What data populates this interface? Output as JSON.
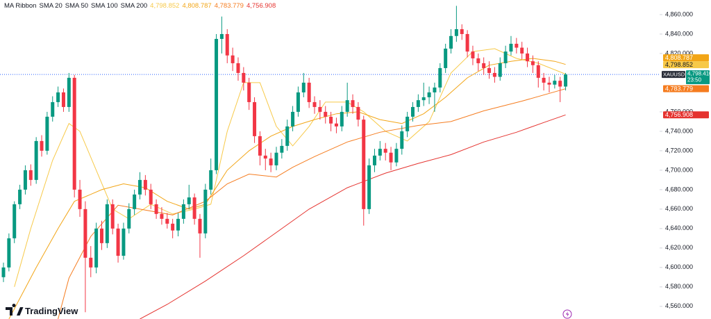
{
  "chart_data": {
    "type": "candlestick",
    "title": "MA Ribbon",
    "symbol": "XAUUSD",
    "time_label": "23:50",
    "brand": "TradingView",
    "last_price": {
      "value": 4798.41,
      "label": "4,798.410"
    },
    "up_color": "#089981",
    "down_color": "#f23645",
    "last_color": "#2962ff",
    "ylim": [
      4547,
      4875
    ],
    "yticks": [
      {
        "value": 4560,
        "label": "4,560.000"
      },
      {
        "value": 4580,
        "label": "4,580.000"
      },
      {
        "value": 4600,
        "label": "4,600.000"
      },
      {
        "value": 4620,
        "label": "4,620.000"
      },
      {
        "value": 4640,
        "label": "4,640.000"
      },
      {
        "value": 4660,
        "label": "4,660.000"
      },
      {
        "value": 4680,
        "label": "4,680.000"
      },
      {
        "value": 4700,
        "label": "4,700.000"
      },
      {
        "value": 4720,
        "label": "4,720.000"
      },
      {
        "value": 4740,
        "label": "4,740.000"
      },
      {
        "value": 4760,
        "label": "4,760.000"
      },
      {
        "value": 4820,
        "label": "4,820.000"
      },
      {
        "value": 4840,
        "label": "4,840.000"
      },
      {
        "value": 4860,
        "label": "4,860.000"
      }
    ],
    "candles": [
      [
        4590,
        4605,
        4585,
        4600
      ],
      [
        4600,
        4635,
        4596,
        4630
      ],
      [
        4630,
        4668,
        4625,
        4665
      ],
      [
        4665,
        4685,
        4660,
        4680
      ],
      [
        4680,
        4705,
        4675,
        4700
      ],
      [
        4700,
        4706,
        4684,
        4690
      ],
      [
        4690,
        4734,
        4686,
        4730
      ],
      [
        4730,
        4736,
        4714,
        4720
      ],
      [
        4720,
        4760,
        4716,
        4755
      ],
      [
        4755,
        4776,
        4750,
        4770
      ],
      [
        4770,
        4786,
        4765,
        4780
      ],
      [
        4780,
        4784,
        4760,
        4765
      ],
      [
        4765,
        4800,
        4760,
        4795
      ],
      [
        4795,
        4798,
        4672,
        4680
      ],
      [
        4680,
        4690,
        4652,
        4660
      ],
      [
        4660,
        4668,
        4554,
        4610
      ],
      [
        4610,
        4622,
        4590,
        4600
      ],
      [
        4600,
        4646,
        4594,
        4640
      ],
      [
        4640,
        4648,
        4618,
        4625
      ],
      [
        4625,
        4670,
        4620,
        4665
      ],
      [
        4665,
        4670,
        4634,
        4640
      ],
      [
        4640,
        4645,
        4605,
        4612
      ],
      [
        4612,
        4646,
        4608,
        4640
      ],
      [
        4640,
        4666,
        4635,
        4660
      ],
      [
        4660,
        4680,
        4654,
        4675
      ],
      [
        4675,
        4698,
        4670,
        4690
      ],
      [
        4690,
        4695,
        4674,
        4680
      ],
      [
        4680,
        4686,
        4660,
        4665
      ],
      [
        4665,
        4670,
        4650,
        4655
      ],
      [
        4655,
        4662,
        4644,
        4650
      ],
      [
        4650,
        4656,
        4640,
        4645
      ],
      [
        4645,
        4650,
        4630,
        4638
      ],
      [
        4638,
        4656,
        4632,
        4650
      ],
      [
        4650,
        4670,
        4645,
        4665
      ],
      [
        4665,
        4685,
        4660,
        4672
      ],
      [
        4672,
        4676,
        4644,
        4650
      ],
      [
        4650,
        4655,
        4610,
        4635
      ],
      [
        4635,
        4686,
        4630,
        4680
      ],
      [
        4680,
        4712,
        4675,
        4700
      ],
      [
        4700,
        4840,
        4696,
        4835
      ],
      [
        4835,
        4858,
        4820,
        4840
      ],
      [
        4840,
        4845,
        4810,
        4818
      ],
      [
        4818,
        4826,
        4802,
        4810
      ],
      [
        4810,
        4816,
        4792,
        4800
      ],
      [
        4800,
        4806,
        4782,
        4790
      ],
      [
        4790,
        4795,
        4762,
        4770
      ],
      [
        4770,
        4775,
        4728,
        4735
      ],
      [
        4735,
        4740,
        4705,
        4715
      ],
      [
        4715,
        4722,
        4700,
        4712
      ],
      [
        4712,
        4718,
        4698,
        4705
      ],
      [
        4705,
        4724,
        4700,
        4718
      ],
      [
        4718,
        4732,
        4712,
        4725
      ],
      [
        4725,
        4752,
        4720,
        4745
      ],
      [
        4745,
        4766,
        4740,
        4760
      ],
      [
        4760,
        4786,
        4755,
        4780
      ],
      [
        4780,
        4800,
        4775,
        4790
      ],
      [
        4790,
        4795,
        4764,
        4770
      ],
      [
        4770,
        4776,
        4758,
        4765
      ],
      [
        4765,
        4772,
        4752,
        4760
      ],
      [
        4760,
        4766,
        4748,
        4755
      ],
      [
        4755,
        4760,
        4740,
        4748
      ],
      [
        4748,
        4754,
        4738,
        4745
      ],
      [
        4745,
        4766,
        4740,
        4760
      ],
      [
        4760,
        4790,
        4755,
        4772
      ],
      [
        4772,
        4778,
        4758,
        4765
      ],
      [
        4765,
        4770,
        4745,
        4752
      ],
      [
        4752,
        4756,
        4643,
        4660
      ],
      [
        4660,
        4712,
        4655,
        4705
      ],
      [
        4705,
        4722,
        4698,
        4715
      ],
      [
        4715,
        4730,
        4710,
        4722
      ],
      [
        4722,
        4728,
        4710,
        4718
      ],
      [
        4718,
        4724,
        4700,
        4708
      ],
      [
        4708,
        4728,
        4704,
        4722
      ],
      [
        4722,
        4746,
        4716,
        4740
      ],
      [
        4740,
        4760,
        4734,
        4755
      ],
      [
        4755,
        4770,
        4750,
        4765
      ],
      [
        4765,
        4778,
        4760,
        4772
      ],
      [
        4772,
        4790,
        4766,
        4775
      ],
      [
        4775,
        4786,
        4768,
        4780
      ],
      [
        4780,
        4790,
        4760,
        4785
      ],
      [
        4785,
        4810,
        4780,
        4805
      ],
      [
        4805,
        4830,
        4800,
        4825
      ],
      [
        4825,
        4845,
        4820,
        4838
      ],
      [
        4838,
        4869,
        4832,
        4845
      ],
      [
        4845,
        4850,
        4834,
        4840
      ],
      [
        4840,
        4844,
        4816,
        4822
      ],
      [
        4822,
        4828,
        4808,
        4815
      ],
      [
        4815,
        4820,
        4802,
        4810
      ],
      [
        4810,
        4816,
        4798,
        4805
      ],
      [
        4805,
        4812,
        4794,
        4800
      ],
      [
        4800,
        4806,
        4790,
        4796
      ],
      [
        4796,
        4816,
        4792,
        4810
      ],
      [
        4810,
        4828,
        4805,
        4822
      ],
      [
        4822,
        4838,
        4818,
        4830
      ],
      [
        4830,
        4836,
        4820,
        4826
      ],
      [
        4826,
        4832,
        4814,
        4820
      ],
      [
        4820,
        4826,
        4806,
        4812
      ],
      [
        4812,
        4818,
        4800,
        4808
      ],
      [
        4808,
        4812,
        4785,
        4795
      ],
      [
        4795,
        4800,
        4782,
        4790
      ],
      [
        4790,
        4796,
        4780,
        4788
      ],
      [
        4788,
        4798,
        4784,
        4792
      ],
      [
        4792,
        4796,
        4770,
        4786
      ],
      [
        4786,
        4800,
        4782,
        4798.41
      ]
    ],
    "series": [
      {
        "name": "SMA 20",
        "color": "#f7c948",
        "last": {
          "value": 4798.852,
          "label": "4,798.852"
        },
        "x": [
          2,
          5,
          9,
          12,
          14,
          17,
          20,
          23,
          27,
          31,
          35,
          38,
          41,
          44,
          47,
          50,
          53,
          56,
          59,
          63,
          66,
          70,
          74,
          78,
          82,
          86,
          90,
          94,
          98,
          103
        ],
        "values": [
          4580,
          4640,
          4710,
          4748,
          4740,
          4700,
          4660,
          4650,
          4665,
          4655,
          4660,
          4665,
          4740,
          4790,
          4790,
          4745,
          4725,
          4745,
          4770,
          4770,
          4760,
          4740,
          4730,
          4750,
          4800,
          4822,
          4825,
          4815,
          4810,
          4798.852
        ]
      },
      {
        "name": "SMA 50",
        "color": "#f2a516",
        "last": {
          "value": 4808.787,
          "label": "4,808.787"
        },
        "x": [
          1,
          6,
          10,
          13,
          18,
          22,
          26,
          30,
          34,
          37,
          41,
          45,
          49,
          53,
          57,
          61,
          65,
          69,
          73,
          77,
          81,
          85,
          89,
          93,
          97,
          101,
          103
        ],
        "values": [
          4547,
          4600,
          4640,
          4668,
          4680,
          4686,
          4682,
          4668,
          4660,
          4665,
          4700,
          4720,
          4735,
          4745,
          4752,
          4758,
          4760,
          4752,
          4748,
          4758,
          4775,
          4795,
          4808,
          4812,
          4815,
          4812,
          4808.787
        ]
      },
      {
        "name": "SMA 100",
        "color": "#f57c1f",
        "last": {
          "value": 4783.779,
          "label": "4,783.779"
        },
        "x": [
          10,
          12,
          16,
          21,
          25,
          31,
          37,
          41,
          45,
          50,
          53,
          57,
          63,
          69,
          76,
          82,
          88,
          95,
          103
        ],
        "values": [
          4547,
          4589,
          4632,
          4664,
          4660,
          4654,
          4668,
          4686,
          4696,
          4693,
          4703,
          4714,
          4729,
          4739,
          4746,
          4750,
          4761,
          4771,
          4783.779
        ]
      },
      {
        "name": "SMA 200",
        "color": "#e5332f",
        "last": {
          "value": 4756.908,
          "label": "4,756.908"
        },
        "x": [
          25,
          30,
          37,
          44,
          50,
          56,
          63,
          70,
          76,
          82,
          88,
          94,
          99,
          103
        ],
        "values": [
          4547,
          4562,
          4586,
          4612,
          4636,
          4660,
          4682,
          4697,
          4707,
          4716,
          4729,
          4739,
          4749,
          4756.908
        ]
      }
    ]
  }
}
